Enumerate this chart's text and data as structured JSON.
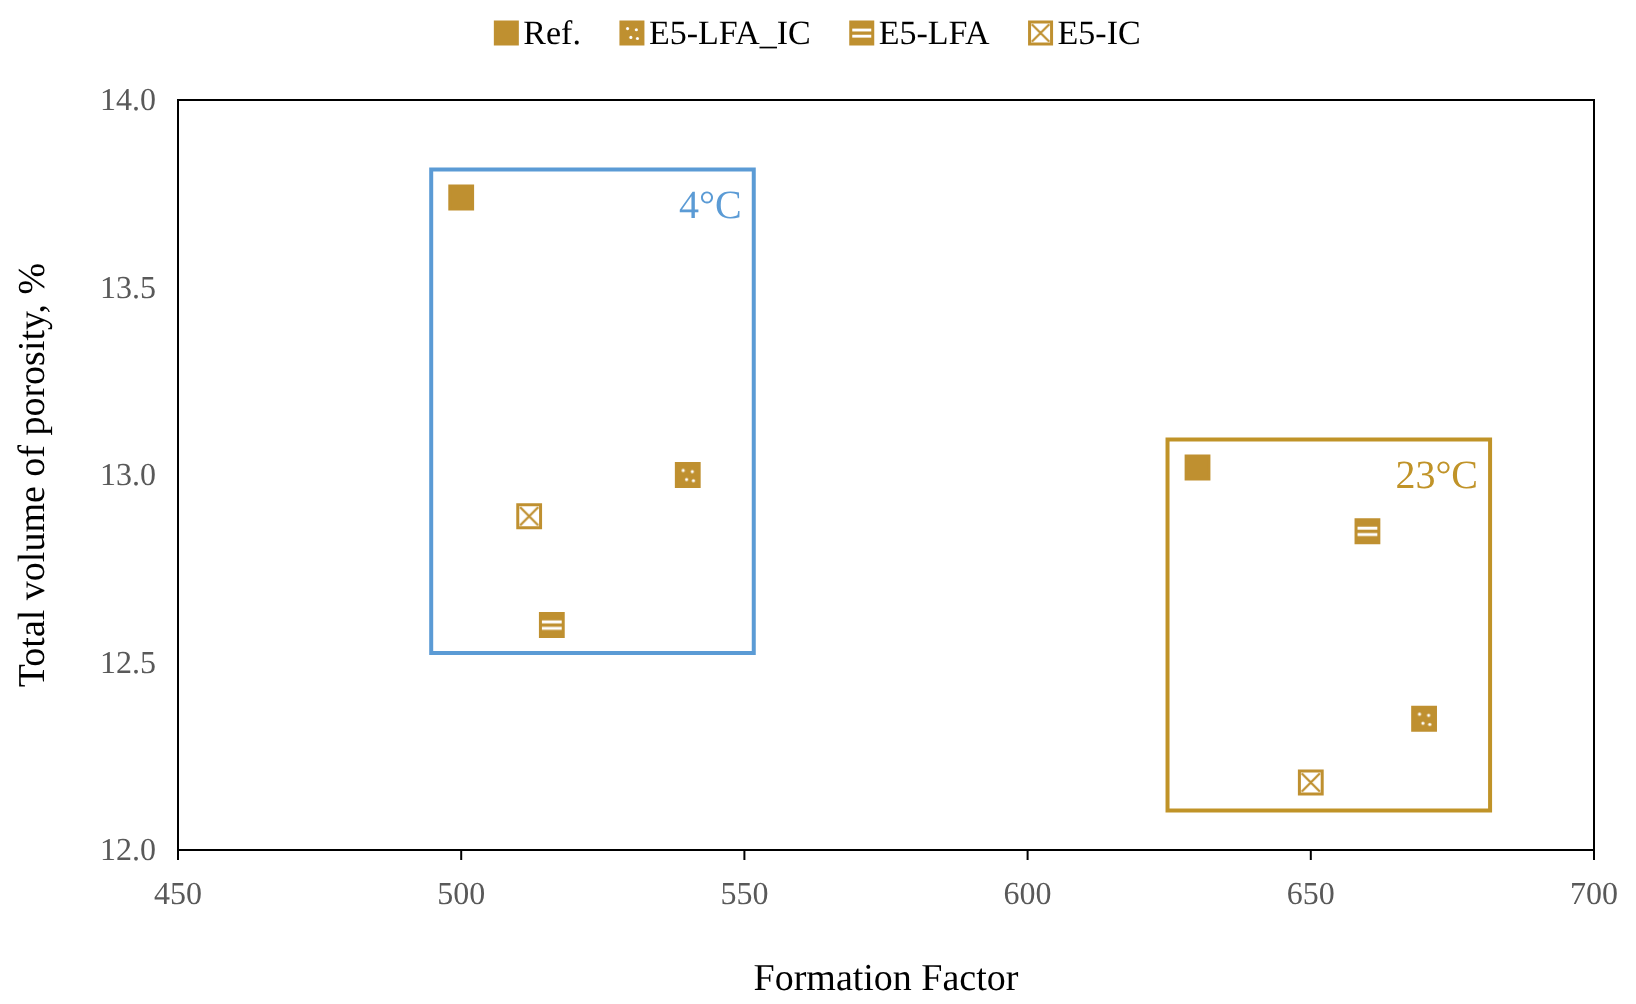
{
  "chart_data": {
    "type": "scatter",
    "xlabel": "Formation Factor",
    "ylabel": "Total volume of porosity, %",
    "xlim": [
      450,
      700
    ],
    "xticks": [
      450,
      500,
      550,
      600,
      650,
      700
    ],
    "ylim": [
      12.0,
      14.0
    ],
    "yticks": [
      {
        "value": 12,
        "label": "12.0"
      },
      {
        "value": 12.5,
        "label": "12.5"
      },
      {
        "value": 13,
        "label": "13.0"
      },
      {
        "value": 13.5,
        "label": "13.5"
      },
      {
        "value": 14,
        "label": "14.0"
      }
    ],
    "marker": "square",
    "legend": "top",
    "grid": false,
    "series": [
      {
        "name": "Ref.",
        "color": "#bf9030",
        "x": [
          500,
          630
        ],
        "values": [
          13.74,
          13.02
        ]
      },
      {
        "name": "E5-LFA_IC",
        "color": "#bf9030",
        "x": [
          540,
          670
        ],
        "values": [
          13.0,
          12.35
        ]
      },
      {
        "name": "E5-LFA",
        "color": "#bf9030",
        "x": [
          516,
          660
        ],
        "values": [
          12.6,
          12.85
        ]
      },
      {
        "name": "E5-IC",
        "color": "#bf9030",
        "x": [
          512,
          650
        ],
        "values": [
          12.89,
          12.18
        ]
      }
    ],
    "annotations": [
      "4°C",
      "23°C"
    ]
  }
}
